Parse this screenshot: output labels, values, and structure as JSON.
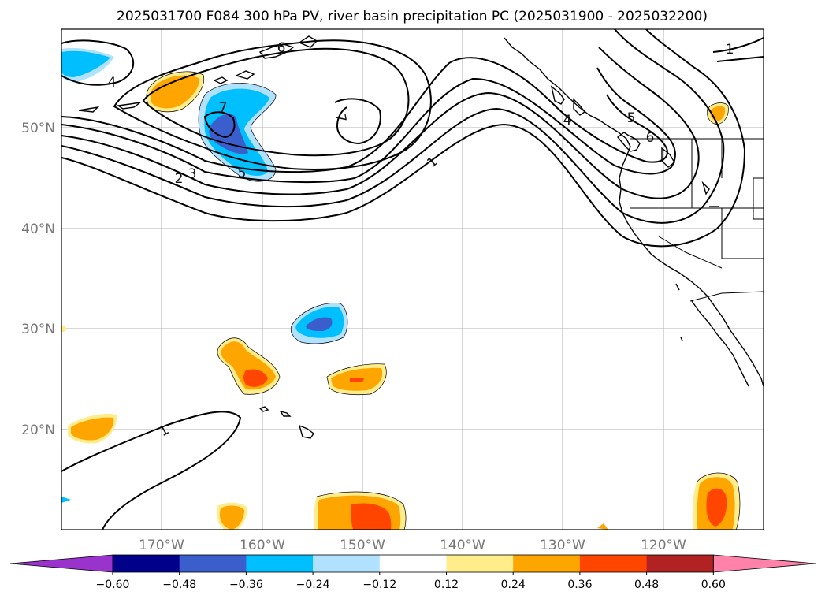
{
  "title": "2025031700 F084 300 hPa PV, river basin precipitation PC (2025031900 - 2025032200)",
  "lat_labels": [
    "50°N",
    "40°N",
    "30°N",
    "20°N"
  ],
  "lon_labels": [
    "170°W",
    "160°W",
    "150°W",
    "140°W",
    "130°W",
    "120°W"
  ],
  "colorbar": {
    "colors": [
      "#9933cc",
      "#00008b",
      "#3a5fcd",
      "#00bfff",
      "#b0e2ff",
      "#ffffff",
      "#ffec8b",
      "#ffa500",
      "#ff4500",
      "#b22222",
      "#ff82ab"
    ],
    "labels": [
      "−0.60",
      "−0.48",
      "−0.36",
      "−0.24",
      "−0.12",
      "0.12",
      "0.24",
      "0.36",
      "0.48",
      "0.60"
    ]
  },
  "contour_labels": [
    "6",
    "4",
    "7",
    "7",
    "5",
    "3",
    "2",
    "1",
    "1",
    "4",
    "5",
    "6",
    "1",
    "1"
  ]
}
